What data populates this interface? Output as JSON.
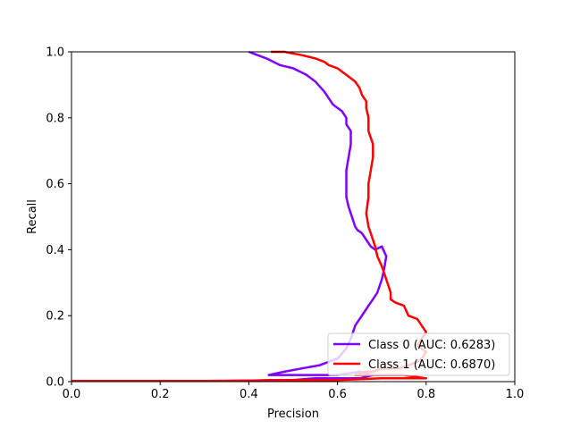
{
  "chart_data": {
    "type": "line",
    "title": "",
    "xlabel": "Precision",
    "ylabel": "Recall",
    "xlim": [
      0.0,
      1.0
    ],
    "ylim": [
      0.0,
      1.0
    ],
    "xticks": [
      "0.0",
      "0.2",
      "0.4",
      "0.6",
      "0.8",
      "1.0"
    ],
    "yticks": [
      "0.0",
      "0.2",
      "0.4",
      "0.6",
      "0.8",
      "1.0"
    ],
    "grid": false,
    "legend_position": "lower-right",
    "series": [
      {
        "name": "Class 0 (AUC: 0.6283)",
        "color": "#7f00ff",
        "x": [
          0.4,
          0.42,
          0.44,
          0.47,
          0.5,
          0.53,
          0.55,
          0.57,
          0.58,
          0.59,
          0.6,
          0.61,
          0.62,
          0.62,
          0.63,
          0.63,
          0.625,
          0.62,
          0.62,
          0.62,
          0.625,
          0.63,
          0.635,
          0.64,
          0.645,
          0.655,
          0.665,
          0.675,
          0.685,
          0.7,
          0.71,
          0.705,
          0.7,
          0.695,
          0.69,
          0.68,
          0.67,
          0.66,
          0.655,
          0.65,
          0.645,
          0.64,
          0.635,
          0.63,
          0.62,
          0.6,
          0.56,
          0.52,
          0.48,
          0.445,
          0.5,
          0.55,
          0.6,
          0.65,
          0.68,
          0.65,
          0.6,
          0.55,
          0.5,
          0.45,
          0.4,
          0.3,
          0.2,
          0.1,
          0.0
        ],
        "y": [
          1.0,
          0.99,
          0.98,
          0.96,
          0.95,
          0.93,
          0.91,
          0.88,
          0.86,
          0.84,
          0.83,
          0.82,
          0.8,
          0.78,
          0.76,
          0.72,
          0.68,
          0.64,
          0.6,
          0.56,
          0.53,
          0.51,
          0.49,
          0.47,
          0.46,
          0.45,
          0.43,
          0.41,
          0.4,
          0.41,
          0.38,
          0.34,
          0.31,
          0.29,
          0.27,
          0.25,
          0.23,
          0.21,
          0.2,
          0.19,
          0.18,
          0.17,
          0.15,
          0.13,
          0.1,
          0.07,
          0.05,
          0.04,
          0.03,
          0.02,
          0.02,
          0.02,
          0.02,
          0.03,
          0.02,
          0.01,
          0.01,
          0.01,
          0.005,
          0.005,
          0.003,
          0.002,
          0.002,
          0.002,
          0.002
        ]
      },
      {
        "name": "Class 1 (AUC: 0.6870)",
        "color": "#ff0000",
        "x": [
          0.45,
          0.48,
          0.52,
          0.55,
          0.57,
          0.58,
          0.6,
          0.61,
          0.62,
          0.64,
          0.65,
          0.655,
          0.665,
          0.665,
          0.67,
          0.67,
          0.68,
          0.68,
          0.675,
          0.67,
          0.67,
          0.665,
          0.67,
          0.675,
          0.68,
          0.685,
          0.69,
          0.7,
          0.71,
          0.72,
          0.72,
          0.73,
          0.75,
          0.76,
          0.78,
          0.79,
          0.8,
          0.79,
          0.78,
          0.8,
          0.79,
          0.78,
          0.76,
          0.74,
          0.72,
          0.7,
          0.68,
          0.66,
          0.64,
          0.7,
          0.75,
          0.8,
          0.7,
          0.6,
          0.5,
          0.4,
          0.3,
          0.2,
          0.1,
          0.0
        ],
        "y": [
          1.0,
          1.0,
          0.99,
          0.98,
          0.97,
          0.96,
          0.95,
          0.94,
          0.93,
          0.91,
          0.89,
          0.87,
          0.85,
          0.83,
          0.8,
          0.76,
          0.72,
          0.68,
          0.64,
          0.6,
          0.56,
          0.51,
          0.47,
          0.45,
          0.43,
          0.41,
          0.38,
          0.35,
          0.31,
          0.27,
          0.25,
          0.24,
          0.23,
          0.2,
          0.19,
          0.17,
          0.15,
          0.13,
          0.11,
          0.09,
          0.07,
          0.06,
          0.05,
          0.04,
          0.04,
          0.04,
          0.03,
          0.03,
          0.02,
          0.02,
          0.02,
          0.01,
          0.01,
          0.005,
          0.005,
          0.003,
          0.002,
          0.002,
          0.002,
          0.002
        ]
      }
    ]
  }
}
